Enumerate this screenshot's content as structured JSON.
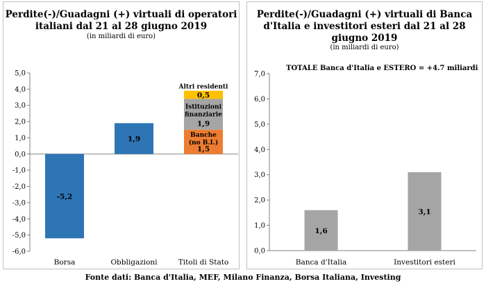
{
  "chart_data": [
    {
      "type": "bar",
      "title_line1": "Perdite(-)/Guadagni (+) virtuali di operatori",
      "title_line2": "italiani dal 21 al 28 giugno 2019",
      "subtitle": "(in miliardi di euro)",
      "categories": [
        "Borsa",
        "Obbligazioni",
        "Titoli di Stato"
      ],
      "ylim": [
        -6.0,
        5.0
      ],
      "yticks": [
        "5,0",
        "4,0",
        "3,0",
        "2,0",
        "1,0",
        "0,0",
        "-1,0",
        "-2,0",
        "-3,0",
        "-4,0",
        "-5,0",
        "-6,0"
      ],
      "bars": [
        {
          "category": "Borsa",
          "value": -5.2,
          "label": "-5,2",
          "color": "#2e75b6"
        },
        {
          "category": "Obbligazioni",
          "value": 1.9,
          "label": "1,9",
          "color": "#2e75b6"
        }
      ],
      "stack": {
        "category": "Titoli di Stato",
        "segments": [
          {
            "name_lines": [
              "Banche",
              "(no B.I.)"
            ],
            "value": 1.5,
            "label": "1,5",
            "color": "#ed7d31"
          },
          {
            "name_lines": [
              "Istituzioni",
              "finanziarie"
            ],
            "value": 1.9,
            "label": "1,9",
            "color": "#a5a5a5"
          },
          {
            "name_lines": [
              "Altri residenti"
            ],
            "value": 0.5,
            "label": "0,5",
            "color": "#ffc000"
          }
        ]
      }
    },
    {
      "type": "bar",
      "title_line1": "Perdite(-)/Guadagni (+)  virtuali di Banca",
      "title_line2": "d'Italia e investitori esteri dal 21 al 28",
      "title_line3": "giugno 2019",
      "subtitle": "(in miliardi di euro)",
      "annotation": "TOTALE Banca d'Italia e ESTERO = +4.7 miliardi",
      "categories": [
        "Banca d'Italia",
        "Investitori esteri"
      ],
      "values": [
        1.6,
        3.1
      ],
      "value_labels": [
        "1,6",
        "3,1"
      ],
      "color": "#a5a5a5",
      "ylim": [
        0.0,
        7.0
      ],
      "yticks": [
        "7,0",
        "6,0",
        "5,0",
        "4,0",
        "3,0",
        "2,0",
        "1,0",
        "0,0"
      ]
    }
  ],
  "source": "Fonte dati: Banca d'Italia, MEF, Milano Finanza, Borsa Italiana, Investing"
}
